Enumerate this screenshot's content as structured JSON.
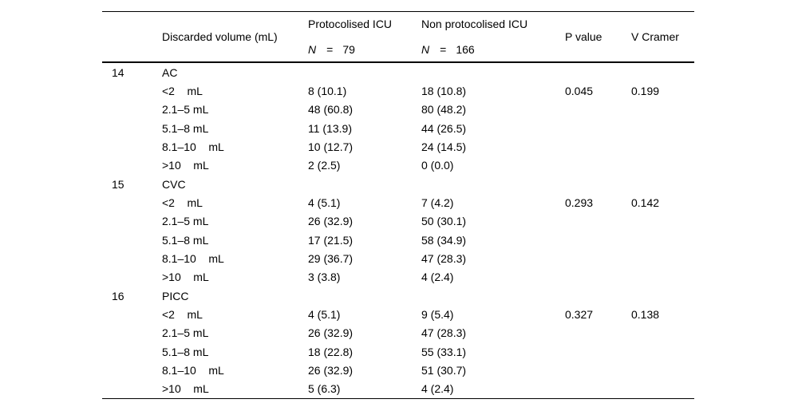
{
  "table": {
    "header": {
      "volume_label": "Discarded volume (mL)",
      "group_protocolised": {
        "title": "Protocolised ICU",
        "n_symbol": "N",
        "eq": "=",
        "n_value": "79"
      },
      "group_non_protocolised": {
        "title": "Non protocolised ICU",
        "n_symbol": "N",
        "eq": "=",
        "n_value": "166"
      },
      "p_value_label": "P value",
      "v_cramer_label": "V Cramer"
    },
    "sections": [
      {
        "id": "14",
        "name": "AC",
        "p_value": "0.045",
        "v_cramer": "0.199",
        "rows": [
          {
            "label": "<2    mL",
            "proto": "8 (10.1)",
            "non_proto": "18 (10.8)"
          },
          {
            "label": "2.1–5 mL",
            "proto": "48 (60.8)",
            "non_proto": "80 (48.2)"
          },
          {
            "label": "5.1–8 mL",
            "proto": "11 (13.9)",
            "non_proto": "44 (26.5)"
          },
          {
            "label": "8.1–10    mL",
            "proto": "10 (12.7)",
            "non_proto": "24 (14.5)"
          },
          {
            "label": ">10    mL",
            "proto": "2 (2.5)",
            "non_proto": "0 (0.0)"
          }
        ]
      },
      {
        "id": "15",
        "name": "CVC",
        "p_value": "0.293",
        "v_cramer": "0.142",
        "rows": [
          {
            "label": "<2    mL",
            "proto": "4 (5.1)",
            "non_proto": "7 (4.2)"
          },
          {
            "label": "2.1–5 mL",
            "proto": "26 (32.9)",
            "non_proto": "50 (30.1)"
          },
          {
            "label": "5.1–8 mL",
            "proto": "17 (21.5)",
            "non_proto": "58 (34.9)"
          },
          {
            "label": "8.1–10    mL",
            "proto": "29 (36.7)",
            "non_proto": "47 (28.3)"
          },
          {
            "label": ">10    mL",
            "proto": "3 (3.8)",
            "non_proto": "4 (2.4)"
          }
        ]
      },
      {
        "id": "16",
        "name": "PICC",
        "p_value": "0.327",
        "v_cramer": "0.138",
        "rows": [
          {
            "label": "<2    mL",
            "proto": "4 (5.1)",
            "non_proto": "9 (5.4)"
          },
          {
            "label": "2.1–5 mL",
            "proto": "26 (32.9)",
            "non_proto": "47 (28.3)"
          },
          {
            "label": "5.1–8 mL",
            "proto": "18 (22.8)",
            "non_proto": "55 (33.1)"
          },
          {
            "label": "8.1–10    mL",
            "proto": "26 (32.9)",
            "non_proto": "51 (30.7)"
          },
          {
            "label": ">10    mL",
            "proto": "5 (6.3)",
            "non_proto": "4 (2.4)"
          }
        ]
      }
    ]
  }
}
